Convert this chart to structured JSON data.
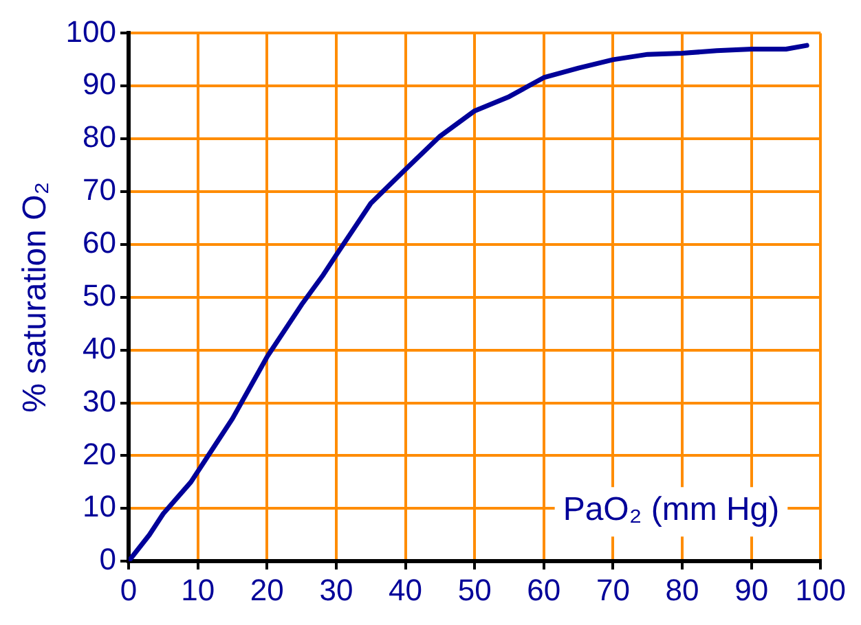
{
  "chart_data": {
    "type": "line",
    "xlabel": "PaO₂ (mm Hg)",
    "ylabel": "% saturation O₂",
    "x": [
      0,
      3,
      5,
      9,
      12,
      15,
      20,
      25,
      28,
      30,
      35,
      40,
      45,
      50,
      55,
      60,
      65,
      70,
      75,
      80,
      85,
      90,
      95,
      98
    ],
    "series": [
      {
        "color": "#000099",
        "values": [
          0,
          5,
          9,
          15,
          21,
          27,
          38.7,
          48.6,
          54,
          58,
          67.8,
          74.2,
          80.5,
          85.3,
          88,
          91.6,
          93.4,
          95,
          96,
          96.2,
          96.7,
          97,
          97,
          97.7
        ]
      }
    ],
    "xlim": [
      0,
      100
    ],
    "ylim": [
      0,
      100
    ],
    "xticks": [
      0,
      10,
      20,
      30,
      40,
      50,
      60,
      70,
      80,
      90,
      100
    ],
    "yticks": [
      0,
      10,
      20,
      30,
      40,
      50,
      60,
      70,
      80,
      90,
      100
    ],
    "grid": true,
    "marker": "none",
    "line_style": "solid"
  }
}
